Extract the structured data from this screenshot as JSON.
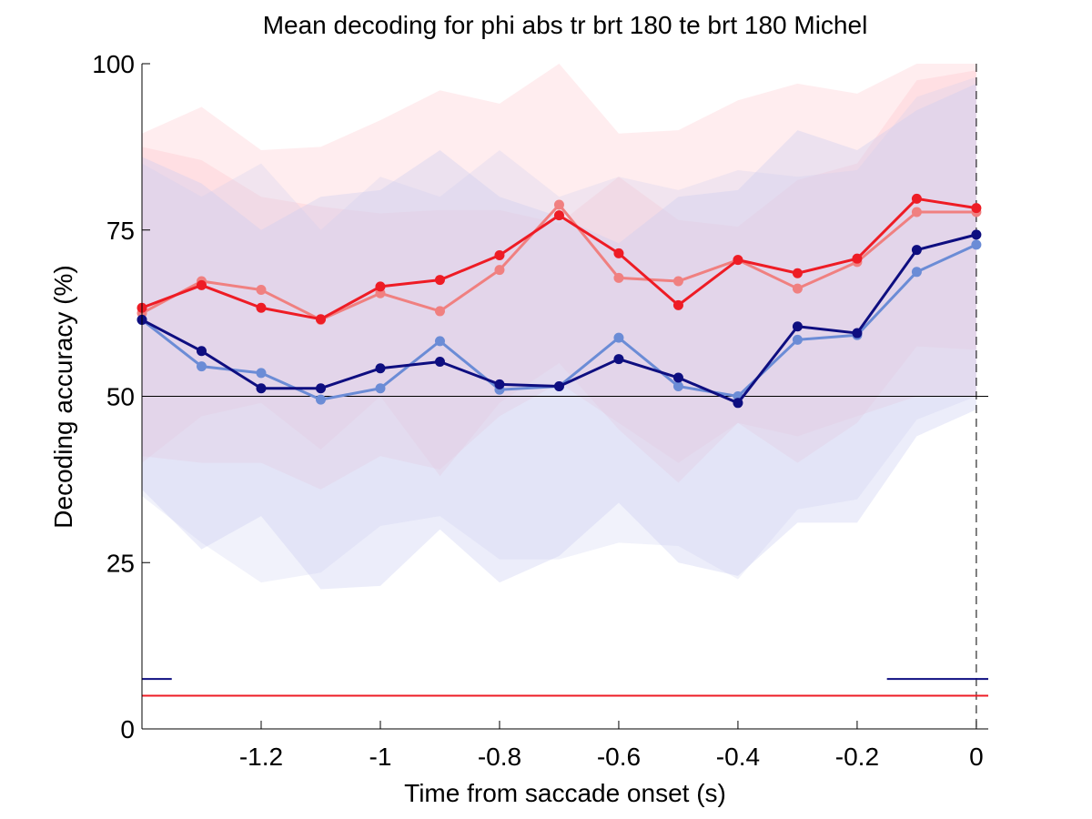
{
  "chart_data": {
    "type": "line",
    "title": "Mean decoding for phi abs tr brt 180 te brt 180  Michel",
    "xlabel": "Time from saccade onset (s)",
    "ylabel": "Decoding accuracy (%)",
    "xlim": [
      -1.4,
      0.02
    ],
    "ylim": [
      0,
      100
    ],
    "xticks": [
      -1.2,
      -1.0,
      -0.8,
      -0.6,
      -0.4,
      -0.2,
      0
    ],
    "xtick_labels": [
      "-1.2",
      "-1",
      "-0.8",
      "-0.6",
      "-0.4",
      "-0.2",
      "0"
    ],
    "yticks": [
      0,
      25,
      50,
      75,
      100
    ],
    "ytick_labels": [
      "0",
      "25",
      "50",
      "75",
      "100"
    ],
    "grid": false,
    "legend": "none",
    "chance_level": 50,
    "saccade_onset_x": 0,
    "x": [
      -1.4,
      -1.3,
      -1.2,
      -1.1,
      -1.0,
      -0.9,
      -0.8,
      -0.7,
      -0.6,
      -0.5,
      -0.4,
      -0.3,
      -0.2,
      -0.1,
      0.0
    ],
    "series": [
      {
        "color": "#f08080",
        "fill_color": "#ffb6c1",
        "values": [
          62.5,
          67.3,
          66.0,
          61.5,
          65.5,
          62.8,
          69.0,
          78.8,
          67.8,
          67.3,
          70.5,
          66.2,
          70.2,
          77.7,
          77.7
        ],
        "upper": [
          89.5,
          93.5,
          87.0,
          87.5,
          91.5,
          96.0,
          94.0,
          100,
          89.5,
          90.0,
          94.5,
          97.0,
          95.5,
          100,
          100
        ],
        "lower": [
          40.0,
          47.0,
          49.0,
          42.0,
          50.0,
          38.0,
          49.0,
          55.0,
          45.0,
          37.0,
          46.0,
          40.0,
          46.0,
          57.5,
          57.0
        ]
      },
      {
        "color": "#ee1c25",
        "fill_color": "#ffb6c1",
        "values": [
          63.3,
          66.7,
          63.3,
          61.6,
          66.5,
          67.5,
          71.2,
          77.2,
          71.5,
          63.7,
          70.5,
          68.5,
          70.7,
          79.7,
          78.3
        ],
        "upper": [
          87.5,
          85.5,
          80.0,
          78.5,
          77.5,
          78.0,
          78.0,
          76.0,
          83.0,
          76.5,
          75.5,
          82.5,
          85.0,
          97.5,
          99.0
        ],
        "lower": [
          41.0,
          40.0,
          40.0,
          36.0,
          41.0,
          39.0,
          47.0,
          52.0,
          46.0,
          40.0,
          46.0,
          44.0,
          47.0,
          50.0,
          50.0
        ]
      },
      {
        "color": "#6b8cd6",
        "fill_color": "#c8ccf0",
        "values": [
          61.5,
          54.5,
          53.5,
          49.5,
          51.2,
          58.3,
          51.0,
          51.5,
          58.8,
          51.5,
          50.0,
          58.5,
          59.2,
          68.7,
          72.8
        ],
        "upper": [
          86.0,
          82.0,
          75.0,
          80.0,
          81.0,
          87.0,
          80.0,
          77.0,
          73.0,
          80.0,
          81.0,
          90.0,
          87.0,
          93.0,
          97.0
        ],
        "lower": [
          36.0,
          27.0,
          32.0,
          21.0,
          21.5,
          30.0,
          22.0,
          26.0,
          34.0,
          25.0,
          23.0,
          31.0,
          31.0,
          44.0,
          48.0
        ]
      },
      {
        "color": "#0e0e80",
        "fill_color": "#c8ccf0",
        "values": [
          61.5,
          56.8,
          51.2,
          51.2,
          54.2,
          55.2,
          51.8,
          51.5,
          55.6,
          52.8,
          49.0,
          60.5,
          59.5,
          72.0,
          74.3
        ],
        "upper": [
          85.0,
          80.0,
          85.0,
          75.0,
          83.0,
          80.0,
          87.0,
          80.0,
          83.0,
          81.0,
          84.0,
          83.0,
          84.0,
          95.0,
          98.0
        ],
        "lower": [
          35.0,
          28.0,
          22.0,
          23.5,
          30.5,
          32.0,
          25.5,
          25.5,
          28.0,
          27.5,
          22.5,
          33.0,
          34.5,
          46.5,
          50.0
        ]
      }
    ],
    "significance_bars": [
      {
        "color": "#ee1c25",
        "y": 5,
        "x_ranges": [
          [
            -1.4,
            0.02
          ]
        ]
      },
      {
        "color": "#0e0e80",
        "y": 7.5,
        "x_ranges": [
          [
            -1.4,
            -1.35
          ],
          [
            -0.15,
            0.02
          ]
        ]
      }
    ]
  }
}
